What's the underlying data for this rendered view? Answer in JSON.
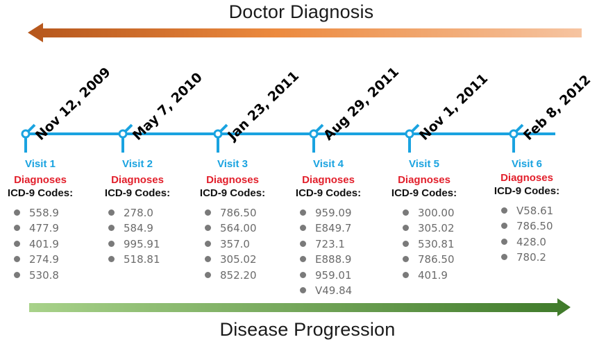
{
  "header": {
    "title": "Doctor Diagnosis"
  },
  "footer": {
    "title": "Disease Progression"
  },
  "colors": {
    "timeline": "#1aa3e0",
    "top_arrow_start": "#b5561c",
    "top_arrow_end": "#f6c4a1",
    "bottom_arrow_start": "#a8d28a",
    "bottom_arrow_end": "#3f7a2a",
    "diagnoses": "#e21f2b"
  },
  "visits": [
    {
      "label": "Visit 1",
      "date": "Nov 12, 2009",
      "diagnoses_label": "Diagnoses",
      "codes_label": "ICD-9 Codes:",
      "codes": [
        "558.9",
        "477.9",
        "401.9",
        "274.9",
        "530.8"
      ]
    },
    {
      "label": "Visit 2",
      "date": "May 7, 2010",
      "diagnoses_label": "Diagnoses",
      "codes_label": "ICD-9 Codes:",
      "codes": [
        "278.0",
        "584.9",
        "995.91",
        "518.81"
      ]
    },
    {
      "label": "Visit 3",
      "date": "Jan 23, 2011",
      "diagnoses_label": "Diagnoses",
      "codes_label": "ICD-9 Codes:",
      "codes": [
        "786.50",
        "564.00",
        "357.0",
        "305.02",
        "852.20"
      ]
    },
    {
      "label": "Visit 4",
      "date": "Aug 29, 2011",
      "diagnoses_label": "Diagnoses",
      "codes_label": "ICD-9 Codes:",
      "codes": [
        "959.09",
        "E849.7",
        "723.1",
        "E888.9",
        "959.01",
        "V49.84"
      ]
    },
    {
      "label": "Visit 5",
      "date": "Nov 1, 2011",
      "diagnoses_label": "Diagnoses",
      "codes_label": "ICD-9 Codes:",
      "codes": [
        "300.00",
        "305.02",
        "530.81",
        "786.50",
        "401.9"
      ]
    },
    {
      "label": "Visit 6",
      "date": "Feb 8, 2012",
      "diagnoses_label": "Diagnoses",
      "codes_label": "ICD-9 Codes:",
      "codes": [
        "V58.61",
        "786.50",
        "428.0",
        "780.2"
      ]
    }
  ]
}
